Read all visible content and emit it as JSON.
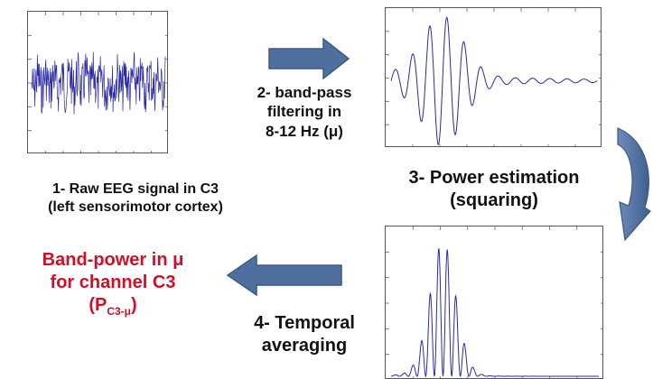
{
  "steps": {
    "raw": {
      "label_line1": "1- Raw EEG signal in C3",
      "label_line2": "(left sensorimotor cortex)"
    },
    "filter": {
      "line1": "2- band-pass",
      "line2": "filtering in",
      "line3": "8-12 Hz (μ)"
    },
    "power": {
      "line1": "3- Power estimation",
      "line2": "(squaring)"
    },
    "avg": {
      "line1": "4- Temporal",
      "line2": "averaging"
    }
  },
  "result": {
    "line1": "Band-power in μ",
    "line2": "for channel C3",
    "symbol_open": "(P",
    "symbol_sub": "C3-μ",
    "symbol_close": ")"
  },
  "colors": {
    "signal": "#2a2aa8",
    "arrow_fill": "#4f6f9f",
    "arrow_stroke": "#3a5a86",
    "accent_red": "#d0102a"
  }
}
